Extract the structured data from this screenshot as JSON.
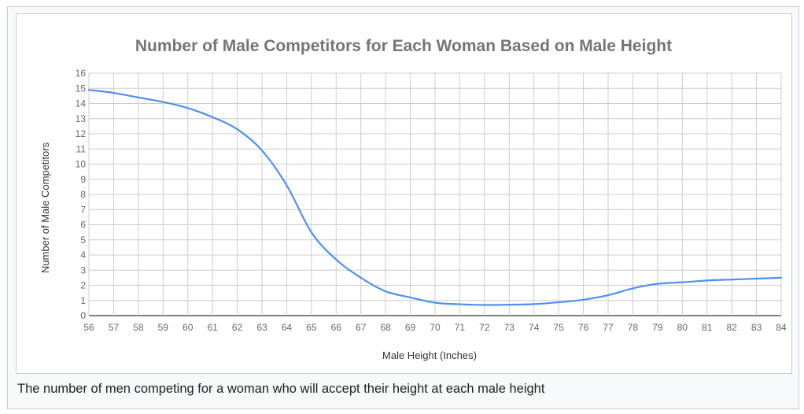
{
  "caption": "The number of men competing for a woman who will accept their height at each male height",
  "chart_data": {
    "type": "line",
    "title": "Number of Male Competitors for Each Woman Based on Male Height",
    "xlabel": "Male Height (Inches)",
    "ylabel": "Number of Male Competitors",
    "xlim": [
      56,
      84
    ],
    "ylim": [
      0,
      16
    ],
    "x_ticks": [
      56,
      57,
      58,
      59,
      60,
      61,
      62,
      63,
      64,
      65,
      66,
      67,
      68,
      69,
      70,
      71,
      72,
      73,
      74,
      75,
      76,
      77,
      78,
      79,
      80,
      81,
      82,
      83,
      84
    ],
    "y_ticks": [
      0,
      1,
      2,
      3,
      4,
      5,
      6,
      7,
      8,
      9,
      10,
      11,
      12,
      13,
      14,
      15,
      16
    ],
    "grid": true,
    "line_color": "#4f8ff0",
    "series": [
      {
        "x": [
          56,
          57,
          58,
          59,
          60,
          61,
          62,
          63,
          64,
          65,
          66,
          67,
          68,
          69,
          70,
          71,
          72,
          73,
          74,
          75,
          76,
          77,
          78,
          79,
          80,
          81,
          82,
          83,
          84
        ],
        "values": [
          14.9,
          14.7,
          14.4,
          14.1,
          13.7,
          13.1,
          12.3,
          10.9,
          8.6,
          5.5,
          3.7,
          2.5,
          1.6,
          1.2,
          0.85,
          0.75,
          0.7,
          0.72,
          0.76,
          0.88,
          1.05,
          1.35,
          1.8,
          2.1,
          2.2,
          2.32,
          2.38,
          2.44,
          2.5
        ]
      }
    ]
  }
}
